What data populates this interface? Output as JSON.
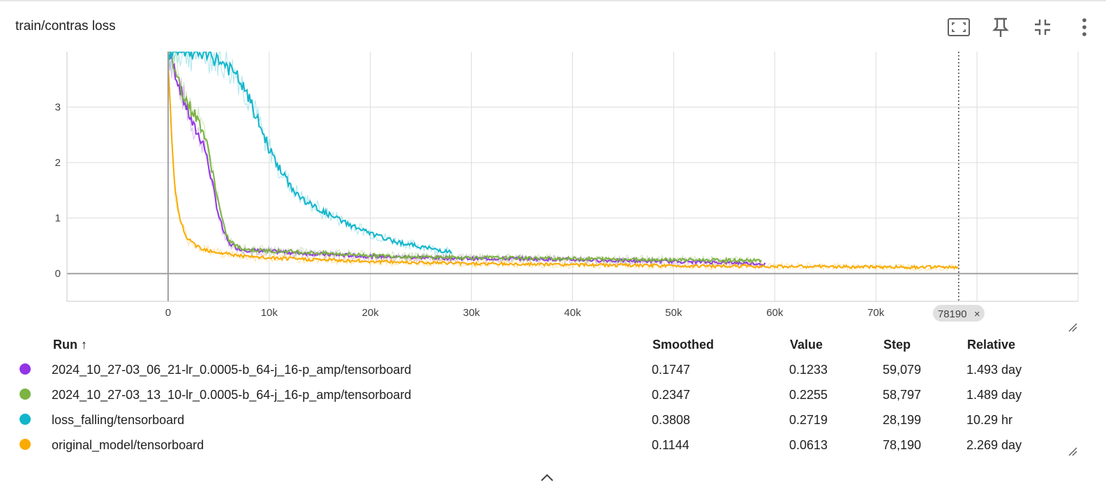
{
  "card": {
    "title": "train/contras loss",
    "tools": [
      "fit-domain-icon",
      "pin-icon",
      "collapse-icon",
      "more-vert-icon"
    ]
  },
  "chart_data": {
    "type": "line",
    "title": "train/contras loss",
    "xlabel": "",
    "ylabel": "",
    "xlim": [
      -10000,
      90000
    ],
    "ylim": [
      -0.5,
      4
    ],
    "x_ticks": [
      "0",
      "10k",
      "20k",
      "30k",
      "40k",
      "50k",
      "60k",
      "70k"
    ],
    "y_ticks": [
      "0",
      "1",
      "2",
      "3"
    ],
    "grid": true,
    "cursor_step": 78190,
    "cursor_label": "78190",
    "series": [
      {
        "name": "2024_10_27-03_06_21-lr_0.0005-b_64-j_16-p_amp/tensorboard",
        "color": "#9334e6",
        "x": [
          0,
          500,
          1000,
          1500,
          2000,
          2500,
          3000,
          3500,
          4000,
          4500,
          5000,
          5500,
          6000,
          7000,
          8000,
          10000,
          12000,
          15000,
          20000,
          25000,
          30000,
          35000,
          40000,
          45000,
          50000,
          55000,
          59079
        ],
        "y": [
          4.0,
          3.75,
          3.45,
          3.15,
          2.9,
          2.65,
          2.5,
          2.35,
          1.95,
          1.5,
          1.05,
          0.75,
          0.55,
          0.45,
          0.42,
          0.4,
          0.38,
          0.35,
          0.31,
          0.29,
          0.27,
          0.27,
          0.25,
          0.23,
          0.22,
          0.2,
          0.1747
        ]
      },
      {
        "name": "2024_10_27-03_13_10-lr_0.0005-b_64-j_16-p_amp/tensorboard",
        "color": "#7cb342",
        "x": [
          0,
          500,
          1000,
          1500,
          2000,
          2500,
          3000,
          3500,
          4000,
          4500,
          5000,
          5500,
          6000,
          7000,
          8000,
          10000,
          12000,
          15000,
          20000,
          25000,
          30000,
          35000,
          40000,
          45000,
          50000,
          55000,
          58797
        ],
        "y": [
          4.0,
          3.8,
          3.5,
          3.25,
          3.05,
          2.9,
          2.75,
          2.55,
          2.2,
          1.75,
          1.25,
          0.85,
          0.6,
          0.47,
          0.43,
          0.41,
          0.4,
          0.37,
          0.33,
          0.3,
          0.29,
          0.28,
          0.27,
          0.26,
          0.25,
          0.24,
          0.2347
        ]
      },
      {
        "name": "loss_falling/tensorboard",
        "color": "#12b5cb",
        "x": [
          0,
          1000,
          2000,
          3000,
          4000,
          5000,
          6000,
          7000,
          8000,
          9000,
          10000,
          11000,
          12000,
          13000,
          14000,
          16000,
          18000,
          20000,
          22000,
          24000,
          26000,
          28199
        ],
        "y": [
          4.0,
          4.0,
          4.0,
          3.98,
          3.92,
          3.85,
          3.7,
          3.5,
          3.15,
          2.7,
          2.25,
          1.9,
          1.6,
          1.38,
          1.25,
          1.05,
          0.88,
          0.72,
          0.6,
          0.52,
          0.45,
          0.3808
        ]
      },
      {
        "name": "original_model/tensorboard",
        "color": "#f9ab00",
        "x": [
          0,
          200,
          400,
          700,
          1000,
          1500,
          2000,
          3000,
          4000,
          5000,
          6000,
          8000,
          10000,
          15000,
          20000,
          25000,
          30000,
          40000,
          50000,
          60000,
          70000,
          78190
        ],
        "y": [
          3.8,
          3.0,
          2.2,
          1.5,
          1.1,
          0.8,
          0.6,
          0.48,
          0.42,
          0.38,
          0.35,
          0.3,
          0.28,
          0.25,
          0.22,
          0.2,
          0.18,
          0.16,
          0.14,
          0.13,
          0.12,
          0.1144
        ]
      }
    ]
  },
  "table": {
    "headers": {
      "run": "Run ↑",
      "smoothed": "Smoothed",
      "value": "Value",
      "step": "Step",
      "relative": "Relative"
    },
    "rows": [
      {
        "color": "#9334e6",
        "run": "2024_10_27-03_06_21-lr_0.0005-b_64-j_16-p_amp/tensorboard",
        "smoothed": "0.1747",
        "value": "0.1233",
        "step": "59,079",
        "relative": "1.493 day"
      },
      {
        "color": "#7cb342",
        "run": "2024_10_27-03_13_10-lr_0.0005-b_64-j_16-p_amp/tensorboard",
        "smoothed": "0.2347",
        "value": "0.2255",
        "step": "58,797",
        "relative": "1.489 day"
      },
      {
        "color": "#12b5cb",
        "run": "loss_falling/tensorboard",
        "smoothed": "0.3808",
        "value": "0.2719",
        "step": "28,199",
        "relative": "10.29 hr"
      },
      {
        "color": "#f9ab00",
        "run": "original_model/tensorboard",
        "smoothed": "0.1144",
        "value": "0.0613",
        "step": "78,190",
        "relative": "2.269 day"
      }
    ]
  }
}
